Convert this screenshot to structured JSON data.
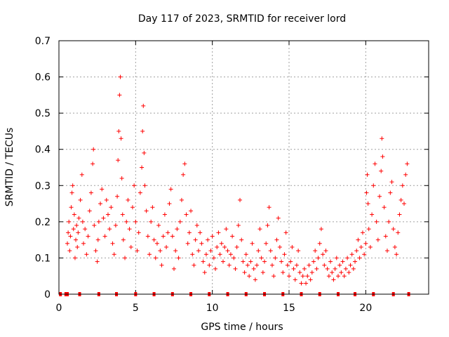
{
  "chart_data": {
    "type": "scatter",
    "title": "Day 117 of 2023, SRMTID for receiver lord",
    "xlabel": "GPS time / hours",
    "ylabel": "SRMTID / TECUs",
    "xlim": [
      0,
      24.1
    ],
    "ylim": [
      0,
      0.7
    ],
    "xticks": [
      0,
      5,
      10,
      15,
      20
    ],
    "yticks": [
      0,
      0.1,
      0.2,
      0.3,
      0.4,
      0.5,
      0.6,
      0.7
    ],
    "xtick_labels": [
      "0",
      "5",
      "10",
      "15",
      "20"
    ],
    "ytick_labels": [
      "0",
      "0.1",
      "0.2",
      "0.3",
      "0.4",
      "0.5",
      "0.6",
      "0.7"
    ],
    "grid": true,
    "marker": "+",
    "color": "#ff0000",
    "series": [
      {
        "name": "SRMTID",
        "points": [
          [
            0.55,
            0.14
          ],
          [
            0.6,
            0.17
          ],
          [
            0.65,
            0.2
          ],
          [
            0.7,
            0.12
          ],
          [
            0.75,
            0.16
          ],
          [
            0.8,
            0.24
          ],
          [
            0.85,
            0.28
          ],
          [
            0.9,
            0.3
          ],
          [
            0.95,
            0.18
          ],
          [
            1.0,
            0.22
          ],
          [
            1.05,
            0.1
          ],
          [
            1.1,
            0.15
          ],
          [
            1.15,
            0.19
          ],
          [
            1.2,
            0.13
          ],
          [
            1.25,
            0.17
          ],
          [
            1.3,
            0.21
          ],
          [
            1.4,
            0.26
          ],
          [
            1.5,
            0.33
          ],
          [
            1.55,
            0.2
          ],
          [
            1.6,
            0.14
          ],
          [
            1.7,
            0.18
          ],
          [
            1.8,
            0.11
          ],
          [
            1.9,
            0.16
          ],
          [
            2.0,
            0.23
          ],
          [
            2.1,
            0.28
          ],
          [
            2.2,
            0.36
          ],
          [
            2.25,
            0.4
          ],
          [
            2.3,
            0.19
          ],
          [
            2.4,
            0.12
          ],
          [
            2.5,
            0.09
          ],
          [
            2.55,
            0.15
          ],
          [
            2.6,
            0.2
          ],
          [
            2.7,
            0.25
          ],
          [
            2.8,
            0.29
          ],
          [
            2.9,
            0.21
          ],
          [
            3.0,
            0.16
          ],
          [
            3.1,
            0.26
          ],
          [
            3.2,
            0.22
          ],
          [
            3.3,
            0.18
          ],
          [
            3.4,
            0.24
          ],
          [
            3.5,
            0.14
          ],
          [
            3.6,
            0.11
          ],
          [
            3.7,
            0.19
          ],
          [
            3.8,
            0.27
          ],
          [
            3.85,
            0.37
          ],
          [
            3.9,
            0.45
          ],
          [
            3.95,
            0.55
          ],
          [
            4.0,
            0.6
          ],
          [
            4.05,
            0.43
          ],
          [
            4.1,
            0.32
          ],
          [
            4.15,
            0.22
          ],
          [
            4.2,
            0.15
          ],
          [
            4.3,
            0.1
          ],
          [
            4.4,
            0.2
          ],
          [
            4.5,
            0.26
          ],
          [
            4.6,
            0.18
          ],
          [
            4.7,
            0.13
          ],
          [
            4.8,
            0.24
          ],
          [
            4.9,
            0.3
          ],
          [
            5.0,
            0.2
          ],
          [
            5.1,
            0.12
          ],
          [
            5.2,
            0.17
          ],
          [
            5.3,
            0.28
          ],
          [
            5.4,
            0.35
          ],
          [
            5.45,
            0.45
          ],
          [
            5.5,
            0.52
          ],
          [
            5.55,
            0.39
          ],
          [
            5.6,
            0.3
          ],
          [
            5.7,
            0.23
          ],
          [
            5.8,
            0.16
          ],
          [
            5.9,
            0.11
          ],
          [
            6.0,
            0.2
          ],
          [
            6.1,
            0.24
          ],
          [
            6.2,
            0.15
          ],
          [
            6.3,
            0.1
          ],
          [
            6.4,
            0.14
          ],
          [
            6.5,
            0.19
          ],
          [
            6.6,
            0.12
          ],
          [
            6.7,
            0.08
          ],
          [
            6.8,
            0.16
          ],
          [
            6.9,
            0.22
          ],
          [
            7.0,
            0.13
          ],
          [
            7.1,
            0.17
          ],
          [
            7.2,
            0.25
          ],
          [
            7.3,
            0.29
          ],
          [
            7.4,
            0.16
          ],
          [
            7.5,
            0.07
          ],
          [
            7.6,
            0.12
          ],
          [
            7.7,
            0.18
          ],
          [
            7.8,
            0.1
          ],
          [
            7.9,
            0.2
          ],
          [
            8.0,
            0.26
          ],
          [
            8.1,
            0.33
          ],
          [
            8.2,
            0.36
          ],
          [
            8.3,
            0.22
          ],
          [
            8.4,
            0.14
          ],
          [
            8.5,
            0.17
          ],
          [
            8.6,
            0.23
          ],
          [
            8.7,
            0.11
          ],
          [
            8.8,
            0.08
          ],
          [
            8.9,
            0.15
          ],
          [
            9.0,
            0.19
          ],
          [
            9.1,
            0.12
          ],
          [
            9.2,
            0.17
          ],
          [
            9.3,
            0.14
          ],
          [
            9.4,
            0.09
          ],
          [
            9.5,
            0.06
          ],
          [
            9.6,
            0.11
          ],
          [
            9.7,
            0.15
          ],
          [
            9.8,
            0.08
          ],
          [
            9.9,
            0.12
          ],
          [
            10.0,
            0.16
          ],
          [
            10.1,
            0.1
          ],
          [
            10.2,
            0.07
          ],
          [
            10.3,
            0.13
          ],
          [
            10.4,
            0.17
          ],
          [
            10.5,
            0.11
          ],
          [
            10.6,
            0.14
          ],
          [
            10.7,
            0.09
          ],
          [
            10.8,
            0.13
          ],
          [
            10.9,
            0.18
          ],
          [
            11.0,
            0.12
          ],
          [
            11.1,
            0.08
          ],
          [
            11.2,
            0.11
          ],
          [
            11.3,
            0.16
          ],
          [
            11.4,
            0.1
          ],
          [
            11.5,
            0.07
          ],
          [
            11.6,
            0.13
          ],
          [
            11.7,
            0.19
          ],
          [
            11.8,
            0.26
          ],
          [
            11.9,
            0.15
          ],
          [
            12.0,
            0.09
          ],
          [
            12.1,
            0.06
          ],
          [
            12.2,
            0.11
          ],
          [
            12.3,
            0.08
          ],
          [
            12.4,
            0.05
          ],
          [
            12.5,
            0.09
          ],
          [
            12.6,
            0.14
          ],
          [
            12.7,
            0.07
          ],
          [
            12.8,
            0.04
          ],
          [
            12.9,
            0.08
          ],
          [
            13.0,
            0.12
          ],
          [
            13.1,
            0.18
          ],
          [
            13.2,
            0.1
          ],
          [
            13.3,
            0.06
          ],
          [
            13.4,
            0.09
          ],
          [
            13.5,
            0.14
          ],
          [
            13.6,
            0.19
          ],
          [
            13.7,
            0.24
          ],
          [
            13.8,
            0.12
          ],
          [
            13.9,
            0.08
          ],
          [
            14.0,
            0.05
          ],
          [
            14.1,
            0.1
          ],
          [
            14.2,
            0.15
          ],
          [
            14.3,
            0.21
          ],
          [
            14.4,
            0.13
          ],
          [
            14.5,
            0.09
          ],
          [
            14.6,
            0.06
          ],
          [
            14.7,
            0.11
          ],
          [
            14.8,
            0.17
          ],
          [
            14.9,
            0.08
          ],
          [
            15.0,
            0.05
          ],
          [
            15.1,
            0.09
          ],
          [
            15.2,
            0.13
          ],
          [
            15.3,
            0.07
          ],
          [
            15.4,
            0.04
          ],
          [
            15.5,
            0.08
          ],
          [
            15.6,
            0.12
          ],
          [
            15.7,
            0.06
          ],
          [
            15.8,
            0.03
          ],
          [
            15.9,
            0.05
          ],
          [
            16.0,
            0.07
          ],
          [
            16.1,
            0.03
          ],
          [
            16.2,
            0.05
          ],
          [
            16.3,
            0.08
          ],
          [
            16.4,
            0.04
          ],
          [
            16.5,
            0.06
          ],
          [
            16.6,
            0.09
          ],
          [
            16.7,
            0.12
          ],
          [
            16.8,
            0.07
          ],
          [
            16.9,
            0.1
          ],
          [
            17.0,
            0.14
          ],
          [
            17.1,
            0.18
          ],
          [
            17.2,
            0.11
          ],
          [
            17.3,
            0.08
          ],
          [
            17.4,
            0.12
          ],
          [
            17.5,
            0.07
          ],
          [
            17.6,
            0.05
          ],
          [
            17.7,
            0.09
          ],
          [
            17.8,
            0.06
          ],
          [
            17.9,
            0.04
          ],
          [
            18.0,
            0.07
          ],
          [
            18.1,
            0.1
          ],
          [
            18.2,
            0.05
          ],
          [
            18.3,
            0.08
          ],
          [
            18.4,
            0.06
          ],
          [
            18.5,
            0.09
          ],
          [
            18.6,
            0.05
          ],
          [
            18.7,
            0.07
          ],
          [
            18.8,
            0.1
          ],
          [
            18.9,
            0.06
          ],
          [
            19.0,
            0.08
          ],
          [
            19.1,
            0.11
          ],
          [
            19.2,
            0.07
          ],
          [
            19.3,
            0.09
          ],
          [
            19.4,
            0.12
          ],
          [
            19.5,
            0.15
          ],
          [
            19.6,
            0.1
          ],
          [
            19.7,
            0.13
          ],
          [
            19.8,
            0.17
          ],
          [
            19.9,
            0.11
          ],
          [
            20.0,
            0.14
          ],
          [
            20.05,
            0.28
          ],
          [
            20.1,
            0.33
          ],
          [
            20.15,
            0.25
          ],
          [
            20.2,
            0.18
          ],
          [
            20.3,
            0.13
          ],
          [
            20.4,
            0.22
          ],
          [
            20.5,
            0.3
          ],
          [
            20.6,
            0.36
          ],
          [
            20.7,
            0.2
          ],
          [
            20.8,
            0.15
          ],
          [
            20.9,
            0.27
          ],
          [
            21.0,
            0.34
          ],
          [
            21.05,
            0.43
          ],
          [
            21.1,
            0.38
          ],
          [
            21.2,
            0.24
          ],
          [
            21.3,
            0.16
          ],
          [
            21.4,
            0.12
          ],
          [
            21.5,
            0.2
          ],
          [
            21.6,
            0.28
          ],
          [
            21.7,
            0.31
          ],
          [
            21.8,
            0.18
          ],
          [
            21.9,
            0.13
          ],
          [
            22.0,
            0.11
          ],
          [
            22.1,
            0.17
          ],
          [
            22.2,
            0.22
          ],
          [
            22.3,
            0.26
          ],
          [
            22.4,
            0.3
          ],
          [
            22.5,
            0.25
          ],
          [
            22.6,
            0.33
          ],
          [
            22.7,
            0.36
          ]
        ]
      }
    ],
    "zero_markers_x": [
      0.1,
      0.45,
      0.55,
      1.35,
      2.6,
      3.75,
      5.0,
      6.2,
      7.4,
      8.6,
      9.8,
      11.0,
      12.2,
      13.4,
      14.6,
      15.8,
      17.0,
      18.2,
      19.3,
      20.5,
      21.8,
      22.8
    ]
  }
}
